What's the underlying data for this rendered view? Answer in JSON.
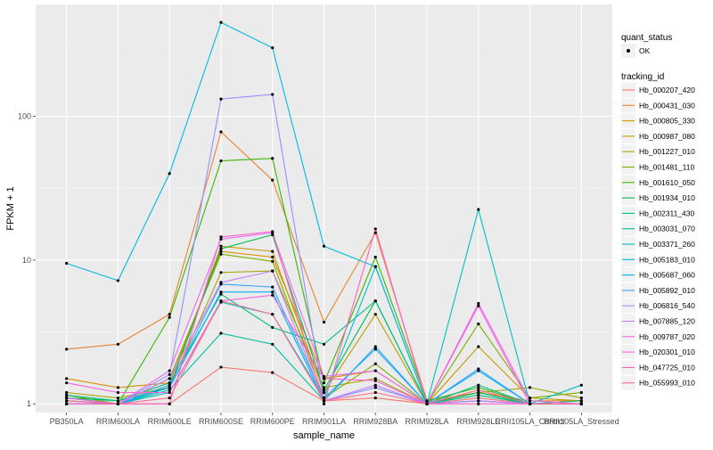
{
  "chart_data": {
    "type": "line",
    "xlabel": "sample_name",
    "ylabel": "FPKM + 1",
    "y_scale": "log10",
    "ylim": [
      0.87,
      600
    ],
    "grid": true,
    "legend_position": "right",
    "y_ticks": [
      1,
      10,
      100
    ],
    "y_tick_labels": [
      "1",
      "10",
      "100"
    ],
    "categories": [
      "PB350LA",
      "RRIM600LA",
      "RRIM600LE",
      "RRIM600SE",
      "RRIM600PE",
      "RRIM901LA",
      "RRIM928BA",
      "RRIM928LA",
      "RRIM928LE",
      "RRII105LA_Control",
      "RRII105LA_Stressed"
    ],
    "point_legend": {
      "title": "quant_status",
      "items": [
        "OK"
      ]
    },
    "series_legend_title": "tracking_id",
    "series": [
      {
        "name": "Hb_000207_420",
        "color": "#F8766D",
        "values": [
          1.05,
          1.0,
          1.0,
          1.8,
          1.65,
          1.05,
          1.1,
          1.0,
          1.1,
          1.0,
          1.0
        ]
      },
      {
        "name": "Hb_000431_030",
        "color": "#EA8331",
        "values": [
          2.4,
          2.6,
          4.2,
          78,
          36,
          3.7,
          15.5,
          1.05,
          1.2,
          1.05,
          1.05
        ]
      },
      {
        "name": "Hb_000805_330",
        "color": "#D89000",
        "values": [
          1.5,
          1.3,
          1.4,
          11.5,
          10.5,
          1.5,
          1.7,
          1.0,
          1.15,
          1.0,
          1.0
        ]
      },
      {
        "name": "Hb_000987_080",
        "color": "#C09B00",
        "values": [
          1.1,
          1.0,
          1.3,
          12.5,
          11.5,
          1.2,
          4.2,
          1.0,
          2.5,
          1.1,
          1.05
        ]
      },
      {
        "name": "Hb_001227_010",
        "color": "#A3A500",
        "values": [
          1.2,
          1.1,
          1.3,
          8.2,
          8.4,
          1.3,
          1.5,
          1.0,
          1.2,
          1.3,
          1.1
        ]
      },
      {
        "name": "Hb_001481_110",
        "color": "#7CAE00",
        "values": [
          1.15,
          1.0,
          1.5,
          11.0,
          9.8,
          1.1,
          1.9,
          1.0,
          3.6,
          1.1,
          1.2
        ]
      },
      {
        "name": "Hb_001610_050",
        "color": "#39B600",
        "values": [
          1.1,
          1.0,
          4.0,
          49,
          51,
          1.4,
          10.5,
          1.05,
          1.3,
          1.0,
          1.0
        ]
      },
      {
        "name": "Hb_001934_010",
        "color": "#00BB4E",
        "values": [
          1.1,
          1.05,
          1.3,
          12.0,
          15.0,
          1.25,
          5.2,
          1.0,
          1.2,
          1.0,
          1.0
        ]
      },
      {
        "name": "Hb_002311_430",
        "color": "#00BF7D",
        "values": [
          1.15,
          1.05,
          1.4,
          5.8,
          3.4,
          2.6,
          5.2,
          1.0,
          1.35,
          1.0,
          1.05
        ]
      },
      {
        "name": "Hb_003031_070",
        "color": "#00C1A3",
        "values": [
          1.05,
          1.0,
          1.25,
          3.1,
          2.6,
          1.05,
          1.3,
          1.0,
          1.15,
          1.0,
          1.0
        ]
      },
      {
        "name": "Hb_003371_260",
        "color": "#00BFC4",
        "values": [
          1.0,
          1.0,
          1.2,
          5.1,
          4.2,
          1.1,
          9.0,
          1.0,
          22.5,
          1.0,
          1.35
        ]
      },
      {
        "name": "Hb_005183_010",
        "color": "#00BAE0",
        "values": [
          9.5,
          7.2,
          40,
          450,
          300,
          12.5,
          9.0,
          1.0,
          1.05,
          1.0,
          1.0
        ]
      },
      {
        "name": "Hb_005687_060",
        "color": "#00B0F6",
        "values": [
          1.0,
          1.0,
          1.3,
          6.0,
          6.0,
          1.05,
          2.5,
          1.0,
          1.7,
          1.0,
          1.0
        ]
      },
      {
        "name": "Hb_005892_010",
        "color": "#35A2FF",
        "values": [
          1.05,
          1.0,
          1.35,
          6.8,
          6.5,
          1.1,
          2.4,
          1.0,
          1.75,
          1.0,
          1.0
        ]
      },
      {
        "name": "Hb_006816_540",
        "color": "#9590FF",
        "values": [
          1.0,
          1.0,
          1.6,
          132,
          142,
          1.05,
          1.3,
          1.0,
          1.05,
          1.0,
          1.0
        ]
      },
      {
        "name": "Hb_007885_120",
        "color": "#C77CFF",
        "values": [
          1.0,
          1.0,
          1.5,
          7.0,
          8.4,
          1.05,
          1.35,
          1.0,
          1.05,
          1.0,
          1.0
        ]
      },
      {
        "name": "Hb_009787_020",
        "color": "#E76BF3",
        "values": [
          1.1,
          1.0,
          1.7,
          14.0,
          15.5,
          1.55,
          1.7,
          1.0,
          5.0,
          1.05,
          1.0
        ]
      },
      {
        "name": "Hb_020301_010",
        "color": "#FA62DB",
        "values": [
          1.4,
          1.2,
          1.2,
          5.2,
          5.7,
          1.5,
          1.45,
          1.0,
          4.8,
          1.0,
          1.0
        ]
      },
      {
        "name": "Hb_047725_010",
        "color": "#FF62BC",
        "values": [
          1.0,
          1.0,
          1.0,
          14.5,
          15.8,
          1.0,
          16.5,
          1.0,
          1.0,
          1.0,
          1.0
        ]
      },
      {
        "name": "Hb_055993_010",
        "color": "#FF6C91",
        "values": [
          1.05,
          1.0,
          1.1,
          5.2,
          4.2,
          1.05,
          1.2,
          1.0,
          1.25,
          1.0,
          1.0
        ]
      }
    ]
  }
}
